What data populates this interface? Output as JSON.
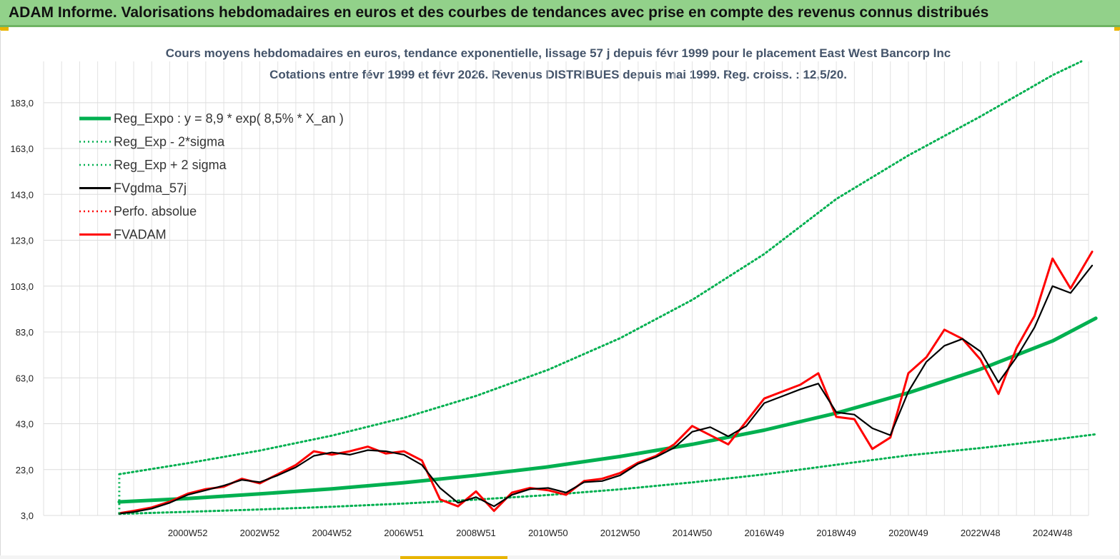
{
  "header": {
    "title": "ADAM Informe. Valorisations hebdomadaires en euros et des courbes de tendances avec prise en compte des revenus connus distribués"
  },
  "colors": {
    "header_bg": "#92d18a",
    "reg_expo": "#00b050",
    "gdma": "#000000",
    "fvadam": "#ff0000",
    "perfo": "#ff0000"
  },
  "chart_data": {
    "type": "line",
    "title": "Cours moyens hebdomadaires en euros, tendance exponentielle, lissage 57 j depuis févr 1999 pour le placement East West Bancorp Inc",
    "subtitle": "Cotations entre févr 1999 et févr 2026. Revenus DISTRIBUES depuis mai 1999. Reg. croiss. : 12,5/20.",
    "xlabel": "",
    "ylabel": "",
    "x_range": [
      1997.0,
      2026.0
    ],
    "ylim": [
      3,
      201
    ],
    "yticks": [
      "3,0",
      "23,0",
      "43,0",
      "63,0",
      "83,0",
      "103,0",
      "123,0",
      "143,0",
      "163,0",
      "183,0"
    ],
    "ytick_values": [
      3,
      23,
      43,
      63,
      83,
      103,
      123,
      143,
      163,
      183
    ],
    "xticks": [
      "2000W52",
      "2002W52",
      "2004W52",
      "2006W51",
      "2008W51",
      "2010W50",
      "2012W50",
      "2014W50",
      "2016W49",
      "2018W49",
      "2020W49",
      "2022W48",
      "2024W48"
    ],
    "xtick_values": [
      2001.0,
      2003.0,
      2005.0,
      2007.0,
      2009.0,
      2011.0,
      2013.0,
      2015.0,
      2017.0,
      2019.0,
      2021.0,
      2023.0,
      2025.0
    ],
    "grid": true,
    "legend_position": "top-left",
    "legend": [
      {
        "name": "Reg_Expo : y = 8,9 * exp( 8,5% *  X_an )",
        "style": "solid-thick",
        "color": "#00b050"
      },
      {
        "name": "Reg_Exp - 2*sigma",
        "style": "dotted",
        "color": "#00b050"
      },
      {
        "name": "Reg_Exp + 2 sigma",
        "style": "dotted",
        "color": "#00b050"
      },
      {
        "name": "FVgdma_57j",
        "style": "solid",
        "color": "#000000"
      },
      {
        "name": "Perfo. absolue",
        "style": "dotted",
        "color": "#ff0000"
      },
      {
        "name": "FVADAM",
        "style": "solid",
        "color": "#ff0000"
      }
    ],
    "series": [
      {
        "name": "Reg_Expo : y = 8,9 * exp( 8,5% *  X_an )",
        "x": [
          1999.1,
          2001.0,
          2003.0,
          2005.0,
          2007.0,
          2009.0,
          2011.0,
          2013.0,
          2015.0,
          2017.0,
          2019.0,
          2021.0,
          2023.0,
          2025.0,
          2026.2
        ],
        "values": [
          8.9,
          10.4,
          12.4,
          14.6,
          17.3,
          20.5,
          24.2,
          28.7,
          34.0,
          40.2,
          47.6,
          56.5,
          66.8,
          79.1,
          89.0
        ]
      },
      {
        "name": "Reg_Exp - 2*sigma",
        "x": [
          1999.1,
          2001.0,
          2003.0,
          2005.0,
          2007.0,
          2009.0,
          2011.0,
          2013.0,
          2015.0,
          2017.0,
          2019.0,
          2021.0,
          2023.0,
          2025.0,
          2026.2
        ],
        "values": [
          3.7,
          4.6,
          5.6,
          6.8,
          8.2,
          9.9,
          11.9,
          14.4,
          17.4,
          20.9,
          25.1,
          29.2,
          32.4,
          36.0,
          38.4
        ]
      },
      {
        "name": "Reg_Exp + 2 sigma",
        "x": [
          1999.1,
          2001.0,
          2003.0,
          2005.0,
          2007.0,
          2009.0,
          2011.0,
          2013.0,
          2015.0,
          2017.0,
          2019.0,
          2021.0,
          2023.0,
          2025.0,
          2025.8
        ],
        "values": [
          21.0,
          25.8,
          31.3,
          37.8,
          45.6,
          55.1,
          66.5,
          80.3,
          97.0,
          117.0,
          141.0,
          160.0,
          177.0,
          195.0,
          201.0
        ]
      },
      {
        "name": "FVgdma_57j",
        "x": [
          1999.1,
          1999.5,
          2000.0,
          2000.5,
          2001.0,
          2001.5,
          2002.0,
          2002.5,
          2003.0,
          2003.5,
          2004.0,
          2004.5,
          2005.0,
          2005.5,
          2006.0,
          2006.5,
          2007.0,
          2007.5,
          2008.0,
          2008.5,
          2009.0,
          2009.5,
          2010.0,
          2010.5,
          2011.0,
          2011.5,
          2012.0,
          2012.5,
          2013.0,
          2013.5,
          2014.0,
          2014.5,
          2015.0,
          2015.5,
          2016.0,
          2016.5,
          2017.0,
          2017.5,
          2018.0,
          2018.5,
          2019.0,
          2019.5,
          2020.0,
          2020.5,
          2021.0,
          2021.5,
          2022.0,
          2022.5,
          2023.0,
          2023.5,
          2024.0,
          2024.5,
          2025.0,
          2025.5,
          2026.1
        ],
        "values": [
          3.8,
          4.5,
          6.0,
          8.5,
          12.0,
          14.0,
          16.0,
          18.5,
          17.5,
          20.5,
          24.0,
          29.0,
          30.5,
          29.5,
          31.5,
          31.0,
          29.5,
          25.0,
          15.0,
          8.5,
          11.0,
          7.0,
          12.0,
          14.5,
          15.0,
          13.0,
          17.5,
          18.0,
          20.5,
          25.5,
          28.5,
          32.5,
          39.5,
          41.5,
          37.5,
          42.0,
          52.0,
          55.0,
          58.0,
          60.5,
          48.0,
          47.0,
          41.0,
          38.0,
          57.0,
          70.0,
          77.0,
          80.0,
          74.5,
          61.0,
          72.0,
          85.0,
          103.0,
          100.0,
          112.0
        ]
      },
      {
        "name": "FVADAM",
        "x": [
          1999.1,
          1999.5,
          2000.0,
          2000.5,
          2001.0,
          2001.5,
          2002.0,
          2002.5,
          2003.0,
          2003.5,
          2004.0,
          2004.5,
          2005.0,
          2005.5,
          2006.0,
          2006.5,
          2007.0,
          2007.5,
          2008.0,
          2008.5,
          2009.0,
          2009.5,
          2010.0,
          2010.5,
          2011.0,
          2011.5,
          2012.0,
          2012.5,
          2013.0,
          2013.5,
          2014.0,
          2014.5,
          2015.0,
          2015.5,
          2016.0,
          2016.5,
          2017.0,
          2017.5,
          2018.0,
          2018.5,
          2019.0,
          2019.5,
          2020.0,
          2020.5,
          2021.0,
          2021.5,
          2022.0,
          2022.5,
          2023.0,
          2023.5,
          2024.0,
          2024.5,
          2025.0,
          2025.5,
          2026.1
        ],
        "values": [
          4.0,
          5.0,
          6.5,
          9.0,
          12.5,
          14.5,
          15.5,
          19.0,
          17.0,
          21.0,
          25.0,
          31.0,
          29.5,
          31.0,
          33.0,
          30.0,
          31.0,
          27.0,
          10.0,
          7.0,
          13.5,
          5.0,
          13.0,
          15.0,
          14.0,
          12.0,
          18.0,
          19.0,
          21.5,
          26.0,
          29.0,
          34.0,
          42.0,
          38.0,
          34.0,
          44.0,
          54.0,
          57.0,
          60.0,
          65.0,
          46.0,
          45.0,
          32.0,
          37.0,
          65.0,
          72.0,
          84.0,
          80.0,
          71.0,
          56.0,
          76.0,
          90.0,
          115.0,
          102.0,
          118.0
        ]
      }
    ]
  }
}
